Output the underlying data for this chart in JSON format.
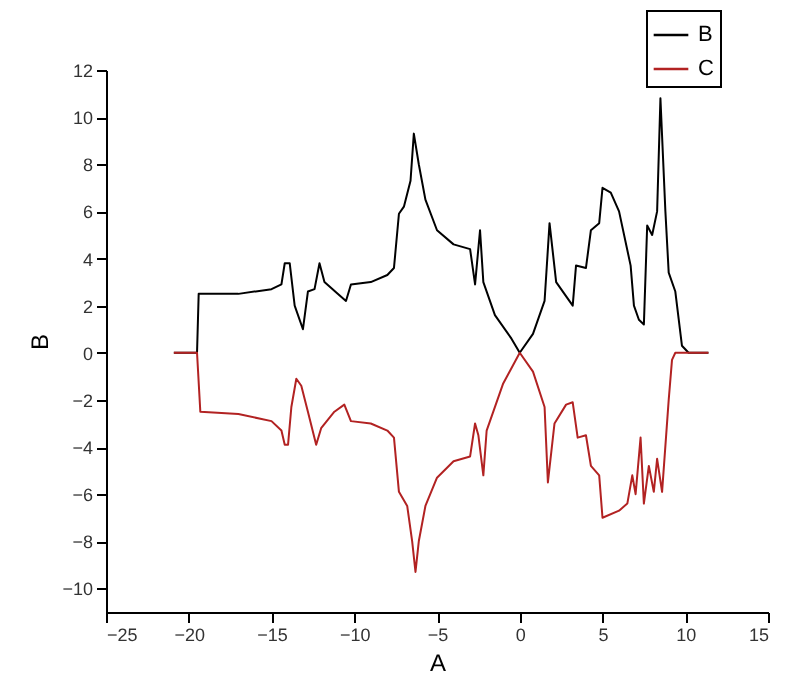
{
  "chart_data": {
    "type": "line",
    "xlabel": "A",
    "ylabel": "B",
    "xlim": [
      -25,
      15
    ],
    "xticks": [
      -25,
      -20,
      -15,
      -10,
      -5,
      0,
      5,
      10,
      15
    ],
    "ylim": [
      -11,
      12
    ],
    "yticks": [
      -10,
      -8,
      -6,
      -4,
      -2,
      0,
      2,
      4,
      6,
      8,
      10,
      12
    ],
    "grid": false,
    "legend": "top right",
    "marker": "none",
    "line_style": "solid",
    "series": [
      {
        "name": "B",
        "color": "#000000",
        "x": [
          -20.9,
          -19.5,
          -19.4,
          -17,
          -15,
          -14.4,
          -14.2,
          -13.9,
          -13.6,
          -13.1,
          -12.8,
          -12.4,
          -12.1,
          -11.8,
          -11,
          -10.5,
          -10.2,
          -9,
          -8,
          -7.6,
          -7.3,
          -7,
          -6.6,
          -6.4,
          -6.1,
          -5.7,
          -5,
          -4,
          -3,
          -2.7,
          -2.4,
          -2.2,
          -1.5,
          -0.5,
          0,
          0.8,
          1.5,
          1.8,
          2.2,
          3.2,
          3.4,
          4,
          4.3,
          4.8,
          5,
          5.5,
          6,
          6.7,
          6.9,
          7.2,
          7.5,
          7.7,
          8,
          8.3,
          8.5,
          8.8,
          9,
          9.4,
          9.8,
          10.2,
          11.4
        ],
        "values": [
          0,
          0,
          2.5,
          2.5,
          2.7,
          2.9,
          3.8,
          3.8,
          2,
          1,
          2.6,
          2.7,
          3.8,
          3,
          2.5,
          2.2,
          2.9,
          3,
          3.3,
          3.6,
          5.9,
          6.2,
          7.3,
          9.3,
          8,
          6.5,
          5.2,
          4.6,
          4.4,
          2.9,
          5.2,
          3,
          1.6,
          0.6,
          0,
          0.8,
          2.2,
          5.5,
          3,
          2,
          3.7,
          3.6,
          5.2,
          5.5,
          7,
          6.8,
          6,
          3.7,
          2,
          1.4,
          1.2,
          5.4,
          5,
          6,
          10.8,
          6,
          3.4,
          2.6,
          0.3,
          0,
          0
        ]
      },
      {
        "name": "C",
        "color": "#b22222",
        "x": [
          -20.9,
          -19.5,
          -19.3,
          -17,
          -15,
          -14.4,
          -14.2,
          -14,
          -13.8,
          -13.5,
          -13.2,
          -12.8,
          -12.3,
          -12,
          -11.2,
          -10.6,
          -10.2,
          -9,
          -8,
          -7.6,
          -7.3,
          -6.8,
          -6.5,
          -6.3,
          -6.1,
          -5.7,
          -5,
          -4,
          -3,
          -2.7,
          -2.5,
          -2.2,
          -2,
          -1,
          0,
          0.8,
          1.5,
          1.7,
          2.1,
          2.8,
          3.2,
          3.5,
          4,
          4.3,
          4.8,
          5,
          6,
          6.5,
          6.8,
          7,
          7.3,
          7.5,
          7.8,
          8.1,
          8.3,
          8.6,
          9,
          9.2,
          9.4,
          11.4
        ],
        "values": [
          0,
          0,
          -2.5,
          -2.6,
          -2.9,
          -3.3,
          -3.9,
          -3.9,
          -2.3,
          -1.1,
          -1.4,
          -2.5,
          -3.9,
          -3.2,
          -2.5,
          -2.2,
          -2.9,
          -3,
          -3.3,
          -3.6,
          -5.9,
          -6.5,
          -8,
          -9.3,
          -8,
          -6.5,
          -5.3,
          -4.6,
          -4.4,
          -3,
          -3.5,
          -5.2,
          -3.3,
          -1.3,
          0,
          -0.8,
          -2.3,
          -5.5,
          -3,
          -2.2,
          -2.1,
          -3.6,
          -3.5,
          -4.8,
          -5.2,
          -7,
          -6.7,
          -6.4,
          -5.2,
          -6,
          -3.6,
          -6.4,
          -4.8,
          -5.9,
          -4.5,
          -5.9,
          -2,
          -0.3,
          0,
          0
        ]
      }
    ]
  }
}
